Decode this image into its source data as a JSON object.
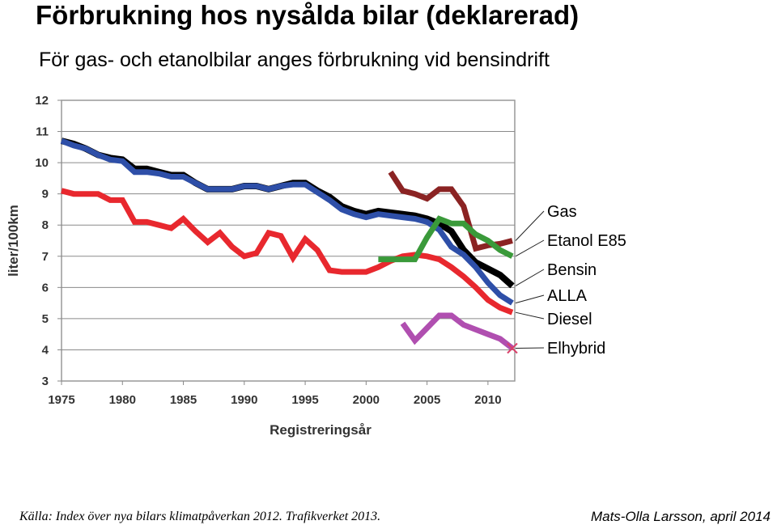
{
  "title": "Förbrukning hos nysålda bilar (deklarerad)",
  "subtitle": "För gas- och etanolbilar anges förbrukning vid bensindrift",
  "source": "Källa: Index över nya bilars klimatpåverkan 2012. Trafikverket 2013.",
  "author": "Mats-Olla Larsson, april 2014",
  "chart_data": {
    "type": "line",
    "title": "",
    "xlabel": "Registreringsår",
    "ylabel": "liter/100km",
    "xlim": [
      1975,
      2013
    ],
    "ylim": [
      3,
      12
    ],
    "grid": true,
    "xticks": [
      1975,
      1980,
      1985,
      1990,
      1995,
      2000,
      2005,
      2010
    ],
    "yticks": [
      3,
      4,
      5,
      6,
      7,
      8,
      9,
      10,
      11,
      12
    ],
    "series": [
      {
        "name": "Gas",
        "color": "#8b2323",
        "points": [
          [
            2002,
            9.7
          ],
          [
            2003,
            9.1
          ],
          [
            2004,
            9.0
          ],
          [
            2005,
            8.85
          ],
          [
            2006,
            9.15
          ],
          [
            2007,
            9.15
          ],
          [
            2008,
            8.6
          ],
          [
            2009,
            7.25
          ],
          [
            2010,
            7.35
          ],
          [
            2011,
            7.4
          ],
          [
            2012,
            7.5
          ]
        ]
      },
      {
        "name": "Etanol E85",
        "color": "#3a9a3a",
        "points": [
          [
            2001,
            6.9
          ],
          [
            2002,
            6.9
          ],
          [
            2003,
            6.9
          ],
          [
            2004,
            6.9
          ],
          [
            2005,
            7.6
          ],
          [
            2006,
            8.2
          ],
          [
            2007,
            8.05
          ],
          [
            2008,
            8.05
          ],
          [
            2009,
            7.7
          ],
          [
            2010,
            7.5
          ],
          [
            2011,
            7.2
          ],
          [
            2012,
            7.0
          ]
        ]
      },
      {
        "name": "Bensin",
        "color": "#000000",
        "points": [
          [
            1975,
            10.7
          ],
          [
            1976,
            10.6
          ],
          [
            1977,
            10.45
          ],
          [
            1978,
            10.25
          ],
          [
            1979,
            10.15
          ],
          [
            1980,
            10.1
          ],
          [
            1981,
            9.8
          ],
          [
            1982,
            9.8
          ],
          [
            1983,
            9.7
          ],
          [
            1984,
            9.6
          ],
          [
            1985,
            9.6
          ],
          [
            1986,
            9.35
          ],
          [
            1987,
            9.15
          ],
          [
            1988,
            9.15
          ],
          [
            1989,
            9.15
          ],
          [
            1990,
            9.25
          ],
          [
            1991,
            9.25
          ],
          [
            1992,
            9.15
          ],
          [
            1993,
            9.25
          ],
          [
            1994,
            9.35
          ],
          [
            1995,
            9.35
          ],
          [
            1996,
            9.1
          ],
          [
            1997,
            8.9
          ],
          [
            1998,
            8.6
          ],
          [
            1999,
            8.45
          ],
          [
            2000,
            8.35
          ],
          [
            2001,
            8.45
          ],
          [
            2002,
            8.4
          ],
          [
            2003,
            8.35
          ],
          [
            2004,
            8.3
          ],
          [
            2005,
            8.2
          ],
          [
            2006,
            8.05
          ],
          [
            2007,
            7.8
          ],
          [
            2008,
            7.2
          ],
          [
            2009,
            6.8
          ],
          [
            2010,
            6.6
          ],
          [
            2011,
            6.4
          ],
          [
            2012,
            6.05
          ]
        ]
      },
      {
        "name": "ALLA",
        "color": "#2e4fa8",
        "points": [
          [
            1975,
            10.7
          ],
          [
            1976,
            10.55
          ],
          [
            1977,
            10.45
          ],
          [
            1978,
            10.25
          ],
          [
            1979,
            10.1
          ],
          [
            1980,
            10.05
          ],
          [
            1981,
            9.7
          ],
          [
            1982,
            9.7
          ],
          [
            1983,
            9.65
          ],
          [
            1984,
            9.55
          ],
          [
            1985,
            9.55
          ],
          [
            1986,
            9.35
          ],
          [
            1987,
            9.15
          ],
          [
            1988,
            9.15
          ],
          [
            1989,
            9.15
          ],
          [
            1990,
            9.25
          ],
          [
            1991,
            9.25
          ],
          [
            1992,
            9.15
          ],
          [
            1993,
            9.25
          ],
          [
            1994,
            9.3
          ],
          [
            1995,
            9.3
          ],
          [
            1996,
            9.05
          ],
          [
            1997,
            8.8
          ],
          [
            1998,
            8.5
          ],
          [
            1999,
            8.35
          ],
          [
            2000,
            8.25
          ],
          [
            2001,
            8.35
          ],
          [
            2002,
            8.3
          ],
          [
            2003,
            8.25
          ],
          [
            2004,
            8.2
          ],
          [
            2005,
            8.1
          ],
          [
            2006,
            7.85
          ],
          [
            2007,
            7.3
          ],
          [
            2008,
            7.05
          ],
          [
            2009,
            6.65
          ],
          [
            2010,
            6.15
          ],
          [
            2011,
            5.75
          ],
          [
            2012,
            5.5
          ]
        ]
      },
      {
        "name": "Diesel",
        "color": "#e8282e",
        "points": [
          [
            1975,
            9.1
          ],
          [
            1976,
            9.0
          ],
          [
            1977,
            9.0
          ],
          [
            1978,
            9.0
          ],
          [
            1979,
            8.8
          ],
          [
            1980,
            8.8
          ],
          [
            1981,
            8.1
          ],
          [
            1982,
            8.1
          ],
          [
            1983,
            8.0
          ],
          [
            1984,
            7.9
          ],
          [
            1985,
            8.2
          ],
          [
            1986,
            7.8
          ],
          [
            1987,
            7.45
          ],
          [
            1988,
            7.75
          ],
          [
            1989,
            7.3
          ],
          [
            1990,
            7.0
          ],
          [
            1991,
            7.1
          ],
          [
            1992,
            7.75
          ],
          [
            1993,
            7.65
          ],
          [
            1994,
            6.95
          ],
          [
            1995,
            7.55
          ],
          [
            1996,
            7.2
          ],
          [
            1997,
            6.55
          ],
          [
            1998,
            6.5
          ],
          [
            1999,
            6.5
          ],
          [
            2000,
            6.5
          ],
          [
            2001,
            6.65
          ],
          [
            2002,
            6.85
          ],
          [
            2003,
            7.0
          ],
          [
            2004,
            7.05
          ],
          [
            2005,
            7.0
          ],
          [
            2006,
            6.9
          ],
          [
            2007,
            6.65
          ],
          [
            2008,
            6.35
          ],
          [
            2009,
            6.0
          ],
          [
            2010,
            5.6
          ],
          [
            2011,
            5.35
          ],
          [
            2012,
            5.2
          ]
        ]
      },
      {
        "name": "Elhybrid",
        "color": "#b04fb0",
        "points": [
          [
            2003,
            4.85
          ],
          [
            2004,
            4.3
          ],
          [
            2005,
            4.7
          ],
          [
            2006,
            5.1
          ],
          [
            2007,
            5.1
          ],
          [
            2008,
            4.8
          ],
          [
            2009,
            4.65
          ],
          [
            2010,
            4.5
          ],
          [
            2011,
            4.35
          ],
          [
            2012,
            4.05
          ]
        ]
      }
    ],
    "legend": [
      "Gas",
      "Etanol E85",
      "Bensin",
      "ALLA",
      "Diesel",
      "Elhybrid"
    ]
  }
}
